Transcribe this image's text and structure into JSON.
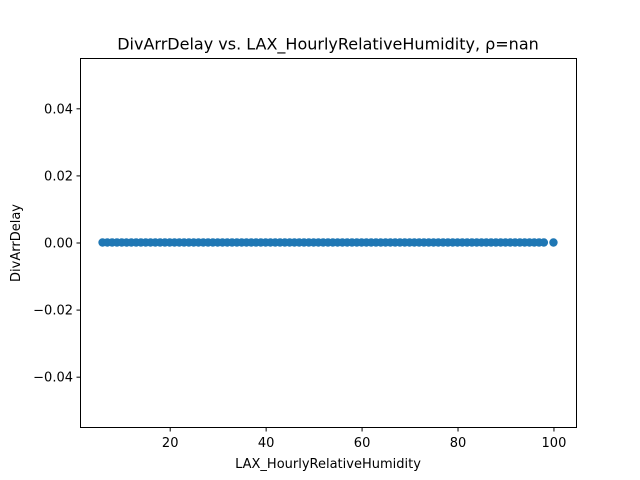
{
  "chart_data": {
    "type": "scatter",
    "title": "DivArrDelay vs. LAX_HourlyRelativeHumidity, ρ=nan",
    "xlabel": "LAX_HourlyRelativeHumidity",
    "ylabel": "DivArrDelay",
    "xlim": [
      1.3,
      104.7
    ],
    "ylim": [
      -0.055,
      0.055
    ],
    "xticks": [
      20,
      40,
      60,
      80,
      100
    ],
    "yticks": [
      0.04,
      0.02,
      0.0,
      -0.02,
      -0.04
    ],
    "xtick_labels": [
      "20",
      "40",
      "60",
      "80",
      "100"
    ],
    "ytick_labels": [
      "0.04",
      "0.02",
      "0.00",
      "−0.02",
      "−0.04"
    ],
    "grid": false,
    "point_color": "#1f77b4",
    "series": [
      {
        "x": [
          6,
          7,
          8,
          9,
          10,
          11,
          12,
          13,
          14,
          15,
          16,
          17,
          18,
          19,
          20,
          21,
          22,
          23,
          24,
          25,
          26,
          27,
          28,
          29,
          30,
          31,
          32,
          33,
          34,
          35,
          36,
          37,
          38,
          39,
          40,
          41,
          42,
          43,
          44,
          45,
          46,
          47,
          48,
          49,
          50,
          51,
          52,
          53,
          54,
          55,
          56,
          57,
          58,
          59,
          60,
          61,
          62,
          63,
          64,
          65,
          66,
          67,
          68,
          69,
          70,
          71,
          72,
          73,
          74,
          75,
          76,
          77,
          78,
          79,
          80,
          81,
          82,
          83,
          84,
          85,
          86,
          87,
          88,
          89,
          90,
          91,
          92,
          93,
          94,
          95,
          96,
          97,
          98,
          100
        ],
        "y": [
          0,
          0,
          0,
          0,
          0,
          0,
          0,
          0,
          0,
          0,
          0,
          0,
          0,
          0,
          0,
          0,
          0,
          0,
          0,
          0,
          0,
          0,
          0,
          0,
          0,
          0,
          0,
          0,
          0,
          0,
          0,
          0,
          0,
          0,
          0,
          0,
          0,
          0,
          0,
          0,
          0,
          0,
          0,
          0,
          0,
          0,
          0,
          0,
          0,
          0,
          0,
          0,
          0,
          0,
          0,
          0,
          0,
          0,
          0,
          0,
          0,
          0,
          0,
          0,
          0,
          0,
          0,
          0,
          0,
          0,
          0,
          0,
          0,
          0,
          0,
          0,
          0,
          0,
          0,
          0,
          0,
          0,
          0,
          0,
          0,
          0,
          0,
          0,
          0,
          0,
          0,
          0,
          0,
          0
        ]
      }
    ]
  }
}
